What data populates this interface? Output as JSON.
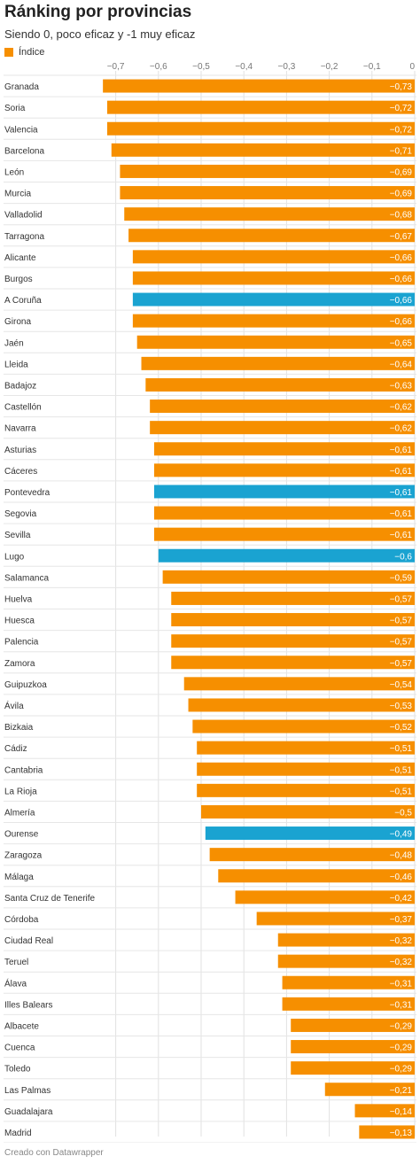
{
  "title": "Ránking por provincias",
  "subtitle": "Siendo 0, poco eficaz y -1 muy eficaz",
  "footer": "Creado con Datawrapper",
  "colors": {
    "default": "#f68f00",
    "highlight": "#1aa3d1"
  },
  "chart_data": {
    "type": "bar",
    "orientation": "horizontal",
    "legend": [
      {
        "name": "Índice",
        "color": "#f68f00"
      }
    ],
    "xlim": [
      -0.75,
      0
    ],
    "ticks": [
      {
        "value": -0.7,
        "label": "−0,7"
      },
      {
        "value": -0.6,
        "label": "−0,6"
      },
      {
        "value": -0.5,
        "label": "−0,5"
      },
      {
        "value": -0.4,
        "label": "−0,4"
      },
      {
        "value": -0.3,
        "label": "−0,3"
      },
      {
        "value": -0.2,
        "label": "−0,2"
      },
      {
        "value": -0.1,
        "label": "−0,1"
      },
      {
        "value": 0,
        "label": "0"
      }
    ],
    "grid": true,
    "rows": [
      {
        "label": "Granada",
        "value": -0.73,
        "display": "−0,73",
        "highlight": false
      },
      {
        "label": "Soria",
        "value": -0.72,
        "display": "−0,72",
        "highlight": false
      },
      {
        "label": "Valencia",
        "value": -0.72,
        "display": "−0,72",
        "highlight": false
      },
      {
        "label": "Barcelona",
        "value": -0.71,
        "display": "−0,71",
        "highlight": false
      },
      {
        "label": "León",
        "value": -0.69,
        "display": "−0,69",
        "highlight": false
      },
      {
        "label": "Murcia",
        "value": -0.69,
        "display": "−0,69",
        "highlight": false
      },
      {
        "label": "Valladolid",
        "value": -0.68,
        "display": "−0,68",
        "highlight": false
      },
      {
        "label": "Tarragona",
        "value": -0.67,
        "display": "−0,67",
        "highlight": false
      },
      {
        "label": "Alicante",
        "value": -0.66,
        "display": "−0,66",
        "highlight": false
      },
      {
        "label": "Burgos",
        "value": -0.66,
        "display": "−0,66",
        "highlight": false
      },
      {
        "label": "A Coruña",
        "value": -0.66,
        "display": "−0,66",
        "highlight": true
      },
      {
        "label": "Girona",
        "value": -0.66,
        "display": "−0,66",
        "highlight": false
      },
      {
        "label": "Jaén",
        "value": -0.65,
        "display": "−0,65",
        "highlight": false
      },
      {
        "label": "Lleida",
        "value": -0.64,
        "display": "−0,64",
        "highlight": false
      },
      {
        "label": "Badajoz",
        "value": -0.63,
        "display": "−0,63",
        "highlight": false
      },
      {
        "label": "Castellón",
        "value": -0.62,
        "display": "−0,62",
        "highlight": false
      },
      {
        "label": "Navarra",
        "value": -0.62,
        "display": "−0,62",
        "highlight": false
      },
      {
        "label": "Asturias",
        "value": -0.61,
        "display": "−0,61",
        "highlight": false
      },
      {
        "label": "Cáceres",
        "value": -0.61,
        "display": "−0,61",
        "highlight": false
      },
      {
        "label": "Pontevedra",
        "value": -0.61,
        "display": "−0,61",
        "highlight": true
      },
      {
        "label": "Segovia",
        "value": -0.61,
        "display": "−0,61",
        "highlight": false
      },
      {
        "label": "Sevilla",
        "value": -0.61,
        "display": "−0,61",
        "highlight": false
      },
      {
        "label": "Lugo",
        "value": -0.6,
        "display": "−0,6",
        "highlight": true
      },
      {
        "label": "Salamanca",
        "value": -0.59,
        "display": "−0,59",
        "highlight": false
      },
      {
        "label": "Huelva",
        "value": -0.57,
        "display": "−0,57",
        "highlight": false
      },
      {
        "label": "Huesca",
        "value": -0.57,
        "display": "−0,57",
        "highlight": false
      },
      {
        "label": "Palencia",
        "value": -0.57,
        "display": "−0,57",
        "highlight": false
      },
      {
        "label": "Zamora",
        "value": -0.57,
        "display": "−0,57",
        "highlight": false
      },
      {
        "label": "Guipuzkoa",
        "value": -0.54,
        "display": "−0,54",
        "highlight": false
      },
      {
        "label": "Ávila",
        "value": -0.53,
        "display": "−0,53",
        "highlight": false
      },
      {
        "label": "Bizkaia",
        "value": -0.52,
        "display": "−0,52",
        "highlight": false
      },
      {
        "label": "Cádiz",
        "value": -0.51,
        "display": "−0,51",
        "highlight": false
      },
      {
        "label": "Cantabria",
        "value": -0.51,
        "display": "−0,51",
        "highlight": false
      },
      {
        "label": "La Rioja",
        "value": -0.51,
        "display": "−0,51",
        "highlight": false
      },
      {
        "label": "Almería",
        "value": -0.5,
        "display": "−0,5",
        "highlight": false
      },
      {
        "label": "Ourense",
        "value": -0.49,
        "display": "−0,49",
        "highlight": true
      },
      {
        "label": "Zaragoza",
        "value": -0.48,
        "display": "−0,48",
        "highlight": false
      },
      {
        "label": "Málaga",
        "value": -0.46,
        "display": "−0,46",
        "highlight": false
      },
      {
        "label": "Santa Cruz de Tenerife",
        "value": -0.42,
        "display": "−0,42",
        "highlight": false
      },
      {
        "label": "Córdoba",
        "value": -0.37,
        "display": "−0,37",
        "highlight": false
      },
      {
        "label": "Ciudad Real",
        "value": -0.32,
        "display": "−0,32",
        "highlight": false
      },
      {
        "label": "Teruel",
        "value": -0.32,
        "display": "−0,32",
        "highlight": false
      },
      {
        "label": "Álava",
        "value": -0.31,
        "display": "−0,31",
        "highlight": false
      },
      {
        "label": "Illes Balears",
        "value": -0.31,
        "display": "−0,31",
        "highlight": false
      },
      {
        "label": "Albacete",
        "value": -0.29,
        "display": "−0,29",
        "highlight": false
      },
      {
        "label": "Cuenca",
        "value": -0.29,
        "display": "−0,29",
        "highlight": false
      },
      {
        "label": "Toledo",
        "value": -0.29,
        "display": "−0,29",
        "highlight": false
      },
      {
        "label": "Las Palmas",
        "value": -0.21,
        "display": "−0,21",
        "highlight": false
      },
      {
        "label": "Guadalajara",
        "value": -0.14,
        "display": "−0,14",
        "highlight": false
      },
      {
        "label": "Madrid",
        "value": -0.13,
        "display": "−0,13",
        "highlight": false
      }
    ]
  }
}
